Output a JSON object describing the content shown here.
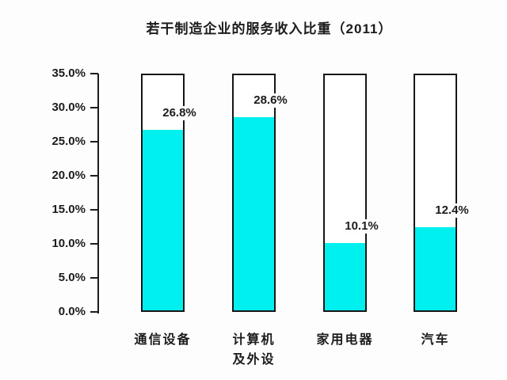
{
  "chart_data": {
    "type": "bar",
    "title": "若干制造企业的服务收入比重（2011）",
    "categories": [
      "通信设备",
      "计算机\n及外设",
      "家用电器",
      "汽车"
    ],
    "values": [
      26.8,
      28.6,
      10.1,
      12.4
    ],
    "value_labels": [
      "26.8%",
      "28.6%",
      "10.1%",
      "12.4%"
    ],
    "ylim": [
      0,
      35
    ],
    "ytick_step": 5,
    "ytick_labels": [
      "35.0%",
      "30.0%",
      "25.0%",
      "20.0%",
      "15.0%",
      "10.0%",
      "5.0%",
      "0.0%"
    ],
    "grid": false,
    "legend": "none",
    "xlabel": "",
    "ylabel": "",
    "colors": {
      "bar_fill": "#00F0F0",
      "bar_outline": "#161616",
      "axis": "#1c1c1c",
      "text": "#1c1c1c",
      "background": "#fdfdfd",
      "bar_background": "#ffffff"
    }
  }
}
